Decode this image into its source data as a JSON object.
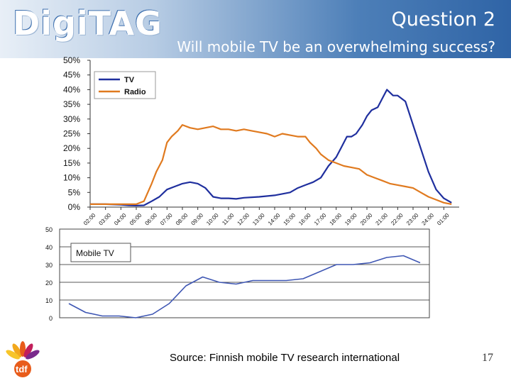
{
  "header": {
    "logo_text": "DigiTAG",
    "title": "Question 2",
    "subtitle": "Will mobile TV be an overwhelming success?"
  },
  "footer": {
    "source": "Source: Finnish mobile TV research international",
    "page_number": "17",
    "logo_text": "tdf"
  },
  "colors": {
    "tv": "#1f2f9e",
    "radio": "#e07a1f",
    "mobile": "#3e56b3"
  },
  "chart_data": [
    {
      "type": "line",
      "title": "",
      "xlabel": "",
      "ylabel": "",
      "ylim": [
        0,
        50
      ],
      "y_ticks": [
        "0%",
        "5%",
        "10%",
        "15%",
        "20%",
        "25%",
        "30%",
        "35%",
        "40%",
        "45%",
        "50%"
      ],
      "x_tick_labels": [
        "02:00",
        "03:00",
        "04:00",
        "05:00",
        "06:00",
        "07:00",
        "08:00",
        "09:00",
        "10:00",
        "11:00",
        "12:00",
        "13:00",
        "14:00",
        "15:00",
        "16:00",
        "17:00",
        "18:00",
        "19:00",
        "20:00",
        "21:00",
        "22:00",
        "23:00",
        "24:00",
        "01:00"
      ],
      "legend_position": "top-left",
      "series": [
        {
          "name": "TV",
          "x": [
            0,
            1,
            2,
            2.5,
            3,
            3.5,
            4,
            4.5,
            5,
            5.5,
            6,
            6.5,
            7,
            7.5,
            8,
            8.5,
            9,
            9.5,
            10,
            11,
            12,
            13,
            13.5,
            14,
            14.5,
            15,
            15.5,
            16,
            16.3,
            16.7,
            17,
            17.3,
            17.7,
            18,
            18.3,
            18.7,
            19,
            19.3,
            19.7,
            20,
            20.5,
            21,
            21.5,
            22,
            22.5,
            23,
            23.5
          ],
          "y": [
            1,
            1,
            0.8,
            0.6,
            0.5,
            0.6,
            2,
            3.5,
            6,
            7,
            8,
            8.5,
            8,
            6.5,
            3.5,
            3,
            3,
            2.8,
            3.2,
            3.5,
            4,
            5,
            6.5,
            7.5,
            8.5,
            10,
            14,
            17,
            20,
            24,
            24,
            25,
            28,
            31,
            33,
            34,
            37,
            40,
            38,
            38,
            36,
            28,
            20,
            12,
            6,
            3,
            1.5
          ]
        },
        {
          "name": "Radio",
          "x": [
            0,
            1,
            2,
            2.5,
            3,
            3.5,
            4,
            4.3,
            4.7,
            5,
            5.3,
            5.7,
            6,
            6.5,
            7,
            7.5,
            8,
            8.5,
            9,
            9.5,
            10,
            10.5,
            11,
            11.5,
            12,
            12.5,
            13,
            13.5,
            14,
            14.3,
            14.7,
            15,
            15.5,
            16,
            16.5,
            17,
            17.5,
            18,
            18.5,
            19,
            19.5,
            20,
            20.5,
            21,
            21.5,
            22,
            22.5,
            23,
            23.5
          ],
          "y": [
            1,
            1,
            1,
            1,
            1,
            2,
            8,
            12,
            16,
            22,
            24,
            26,
            28,
            27,
            26.5,
            27,
            27.5,
            26.5,
            26.5,
            26,
            26.5,
            26,
            25.5,
            25,
            24,
            25,
            24.5,
            24,
            24,
            22,
            20,
            18,
            16,
            15,
            14,
            13.5,
            13,
            11,
            10,
            9,
            8,
            7.5,
            7,
            6.5,
            5,
            3.5,
            2.5,
            1.5,
            1
          ]
        }
      ]
    },
    {
      "type": "line",
      "title": "Mobile TV",
      "xlabel": "",
      "ylabel": "",
      "ylim": [
        0,
        50
      ],
      "y_ticks": [
        "0",
        "10",
        "20",
        "30",
        "40",
        "50"
      ],
      "x_tick_labels": [],
      "series": [
        {
          "name": "",
          "x": [
            0,
            1,
            2,
            3,
            4,
            5,
            6,
            7,
            8,
            9,
            10,
            11,
            12,
            13,
            14,
            15,
            16,
            17,
            18,
            19,
            20,
            21
          ],
          "y": [
            8,
            3,
            1,
            1,
            0,
            2,
            8,
            18,
            23,
            20,
            19,
            21,
            21,
            21,
            22,
            26,
            30,
            30,
            31,
            34,
            35,
            31
          ]
        }
      ]
    }
  ]
}
